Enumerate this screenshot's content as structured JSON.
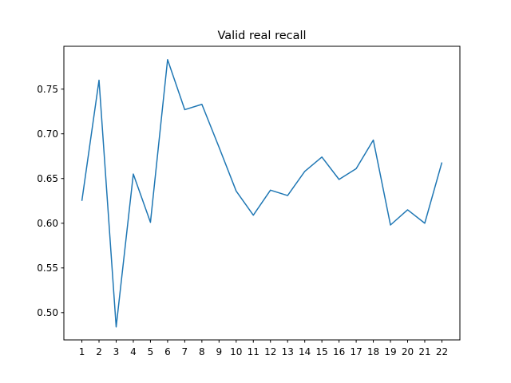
{
  "chart_data": {
    "type": "line",
    "title": "Valid real recall",
    "xlabel": "",
    "ylabel": "",
    "x": [
      1,
      2,
      3,
      4,
      5,
      6,
      7,
      8,
      9,
      10,
      11,
      12,
      13,
      14,
      15,
      16,
      17,
      18,
      19,
      20,
      21,
      22
    ],
    "series": [
      {
        "values": [
          0.625,
          0.76,
          0.484,
          0.655,
          0.601,
          0.783,
          0.727,
          0.733,
          0.685,
          0.636,
          0.609,
          0.637,
          0.631,
          0.658,
          0.674,
          0.649,
          0.661,
          0.693,
          0.598,
          0.615,
          0.6,
          0.668
        ],
        "color": "#1f77b4"
      }
    ],
    "xticks": [
      "1",
      "2",
      "3",
      "4",
      "5",
      "6",
      "7",
      "8",
      "9",
      "10",
      "11",
      "12",
      "13",
      "14",
      "15",
      "16",
      "17",
      "18",
      "19",
      "20",
      "21",
      "22"
    ],
    "yticks": [
      0.5,
      0.55,
      0.6,
      0.65,
      0.7,
      0.75
    ],
    "ytick_labels": [
      "0.50",
      "0.55",
      "0.60",
      "0.65",
      "0.70",
      "0.75"
    ],
    "xlim": [
      -0.05,
      23.05
    ],
    "ylim": [
      0.4695,
      0.7979
    ],
    "grid": false,
    "legend": false
  }
}
